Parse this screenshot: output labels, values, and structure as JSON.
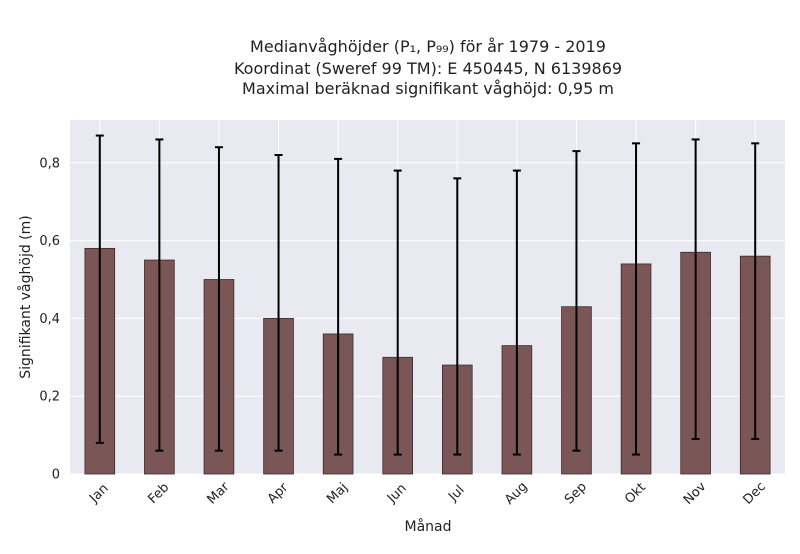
{
  "chart_data": {
    "type": "bar",
    "title": [
      "Medianvåghöjder (P₁, P₉₉) för år 1979 - 2019",
      "Koordinat (Sweref 99 TM): E 450445, N 6139869",
      "Maximal beräknad signifikant våghöjd: 0,95 m"
    ],
    "xlabel": "Månad",
    "ylabel": "Signifikant våghöjd (m)",
    "categories": [
      "Jan",
      "Feb",
      "Mar",
      "Apr",
      "Maj",
      "Jun",
      "Jul",
      "Aug",
      "Sep",
      "Okt",
      "Nov",
      "Dec"
    ],
    "values": [
      0.58,
      0.55,
      0.5,
      0.4,
      0.36,
      0.3,
      0.28,
      0.33,
      0.43,
      0.54,
      0.57,
      0.56
    ],
    "err_low": [
      0.08,
      0.06,
      0.06,
      0.06,
      0.05,
      0.05,
      0.05,
      0.05,
      0.06,
      0.05,
      0.09,
      0.09
    ],
    "err_high": [
      0.87,
      0.86,
      0.84,
      0.82,
      0.81,
      0.78,
      0.76,
      0.78,
      0.83,
      0.85,
      0.86,
      0.85
    ],
    "ylim": [
      0,
      0.91
    ],
    "yticks": [
      0,
      0.2,
      0.4,
      0.6,
      0.8
    ],
    "ytick_labels": [
      "0",
      "0,2",
      "0,4",
      "0,6",
      "0,8"
    ],
    "grid": true,
    "colors": {
      "bar": "#7a5657",
      "bar_edge": "#3d2a2a",
      "errorbar": "#000000",
      "plot_bg": "#e9e9f1",
      "grid": "#ffffff"
    }
  }
}
